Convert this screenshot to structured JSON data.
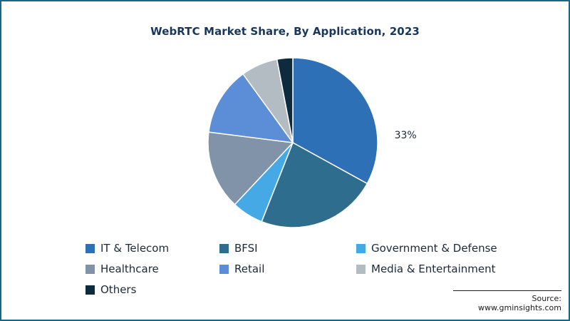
{
  "chart_data": {
    "type": "pie",
    "title": "WebRTC Market Share, By Application, 2023",
    "legend_position": "bottom",
    "start_angle_deg": 0,
    "series": [
      {
        "name": "IT & Telecom",
        "value": 33,
        "color": "#2d70b5",
        "label": "33%"
      },
      {
        "name": "BFSI",
        "value": 23,
        "color": "#2e6d8e",
        "label": ""
      },
      {
        "name": "Government & Defense",
        "value": 6,
        "color": "#45a9e6",
        "label": ""
      },
      {
        "name": "Healthcare",
        "value": 15,
        "color": "#8093a8",
        "label": ""
      },
      {
        "name": "Retail",
        "value": 13,
        "color": "#5b8ed6",
        "label": ""
      },
      {
        "name": "Media & Entertainment",
        "value": 7,
        "color": "#b4bcc3",
        "label": ""
      },
      {
        "name": "Others",
        "value": 3,
        "color": "#0e2a3d",
        "label": ""
      }
    ]
  },
  "source": {
    "text": "Source: www.gminsights.com"
  }
}
